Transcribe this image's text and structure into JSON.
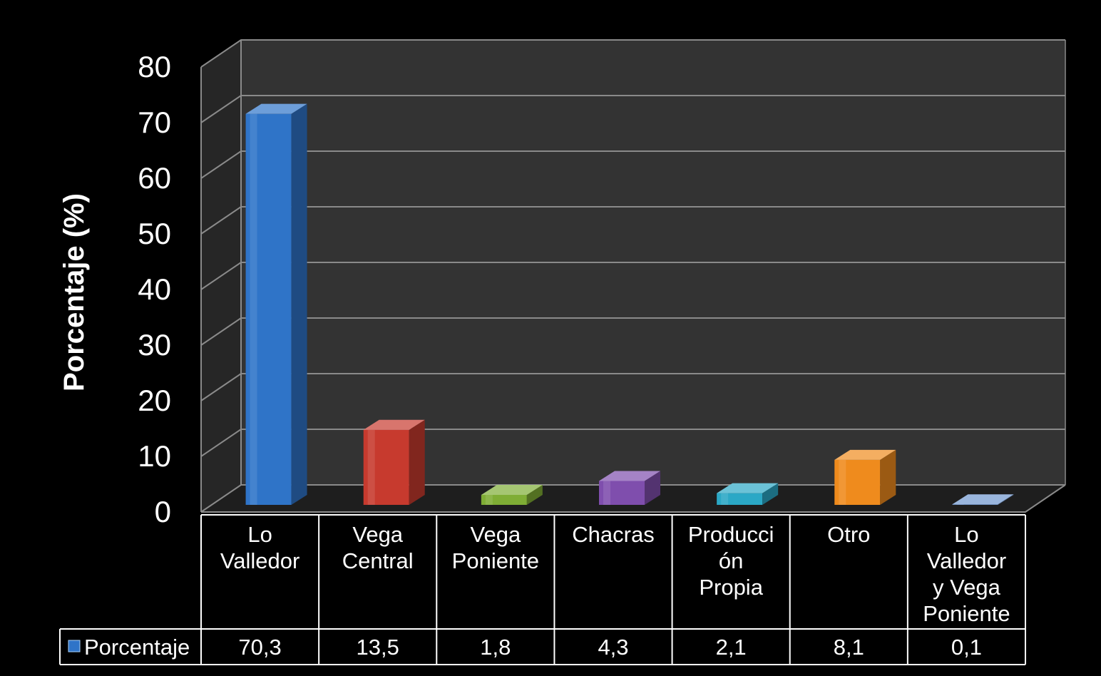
{
  "chart_data": {
    "type": "bar",
    "title": "",
    "xlabel": "",
    "ylabel": "Porcentaje (%)",
    "ylim": [
      0,
      80
    ],
    "yticks": [
      0,
      10,
      20,
      30,
      40,
      50,
      60,
      70,
      80
    ],
    "grid": true,
    "three_d": true,
    "legend_position": "data-table-left",
    "categories": [
      [
        "Lo",
        "Valledor"
      ],
      [
        "Vega",
        "Central"
      ],
      [
        "Vega",
        "Poniente"
      ],
      [
        "Chacras"
      ],
      [
        "Producci",
        "ón",
        "Propia"
      ],
      [
        "Otro"
      ],
      [
        "Lo",
        "Valledor",
        "y Vega",
        "Poniente"
      ]
    ],
    "series": [
      {
        "name": "Porcentaje",
        "values": [
          70.3,
          13.5,
          1.8,
          4.3,
          2.1,
          8.1,
          0.1
        ],
        "value_labels": [
          "70,3",
          "13,5",
          "1,8",
          "4,3",
          "2,1",
          "8,1",
          "0,1"
        ],
        "colors": [
          "#2f74c8",
          "#c73a2e",
          "#7fad35",
          "#7f4ead",
          "#2ba8c6",
          "#ef8b1d",
          "#6f96cf"
        ]
      }
    ],
    "background_color": "#000000",
    "plot_wall_color": "#333333",
    "text_color": "#ffffff"
  }
}
